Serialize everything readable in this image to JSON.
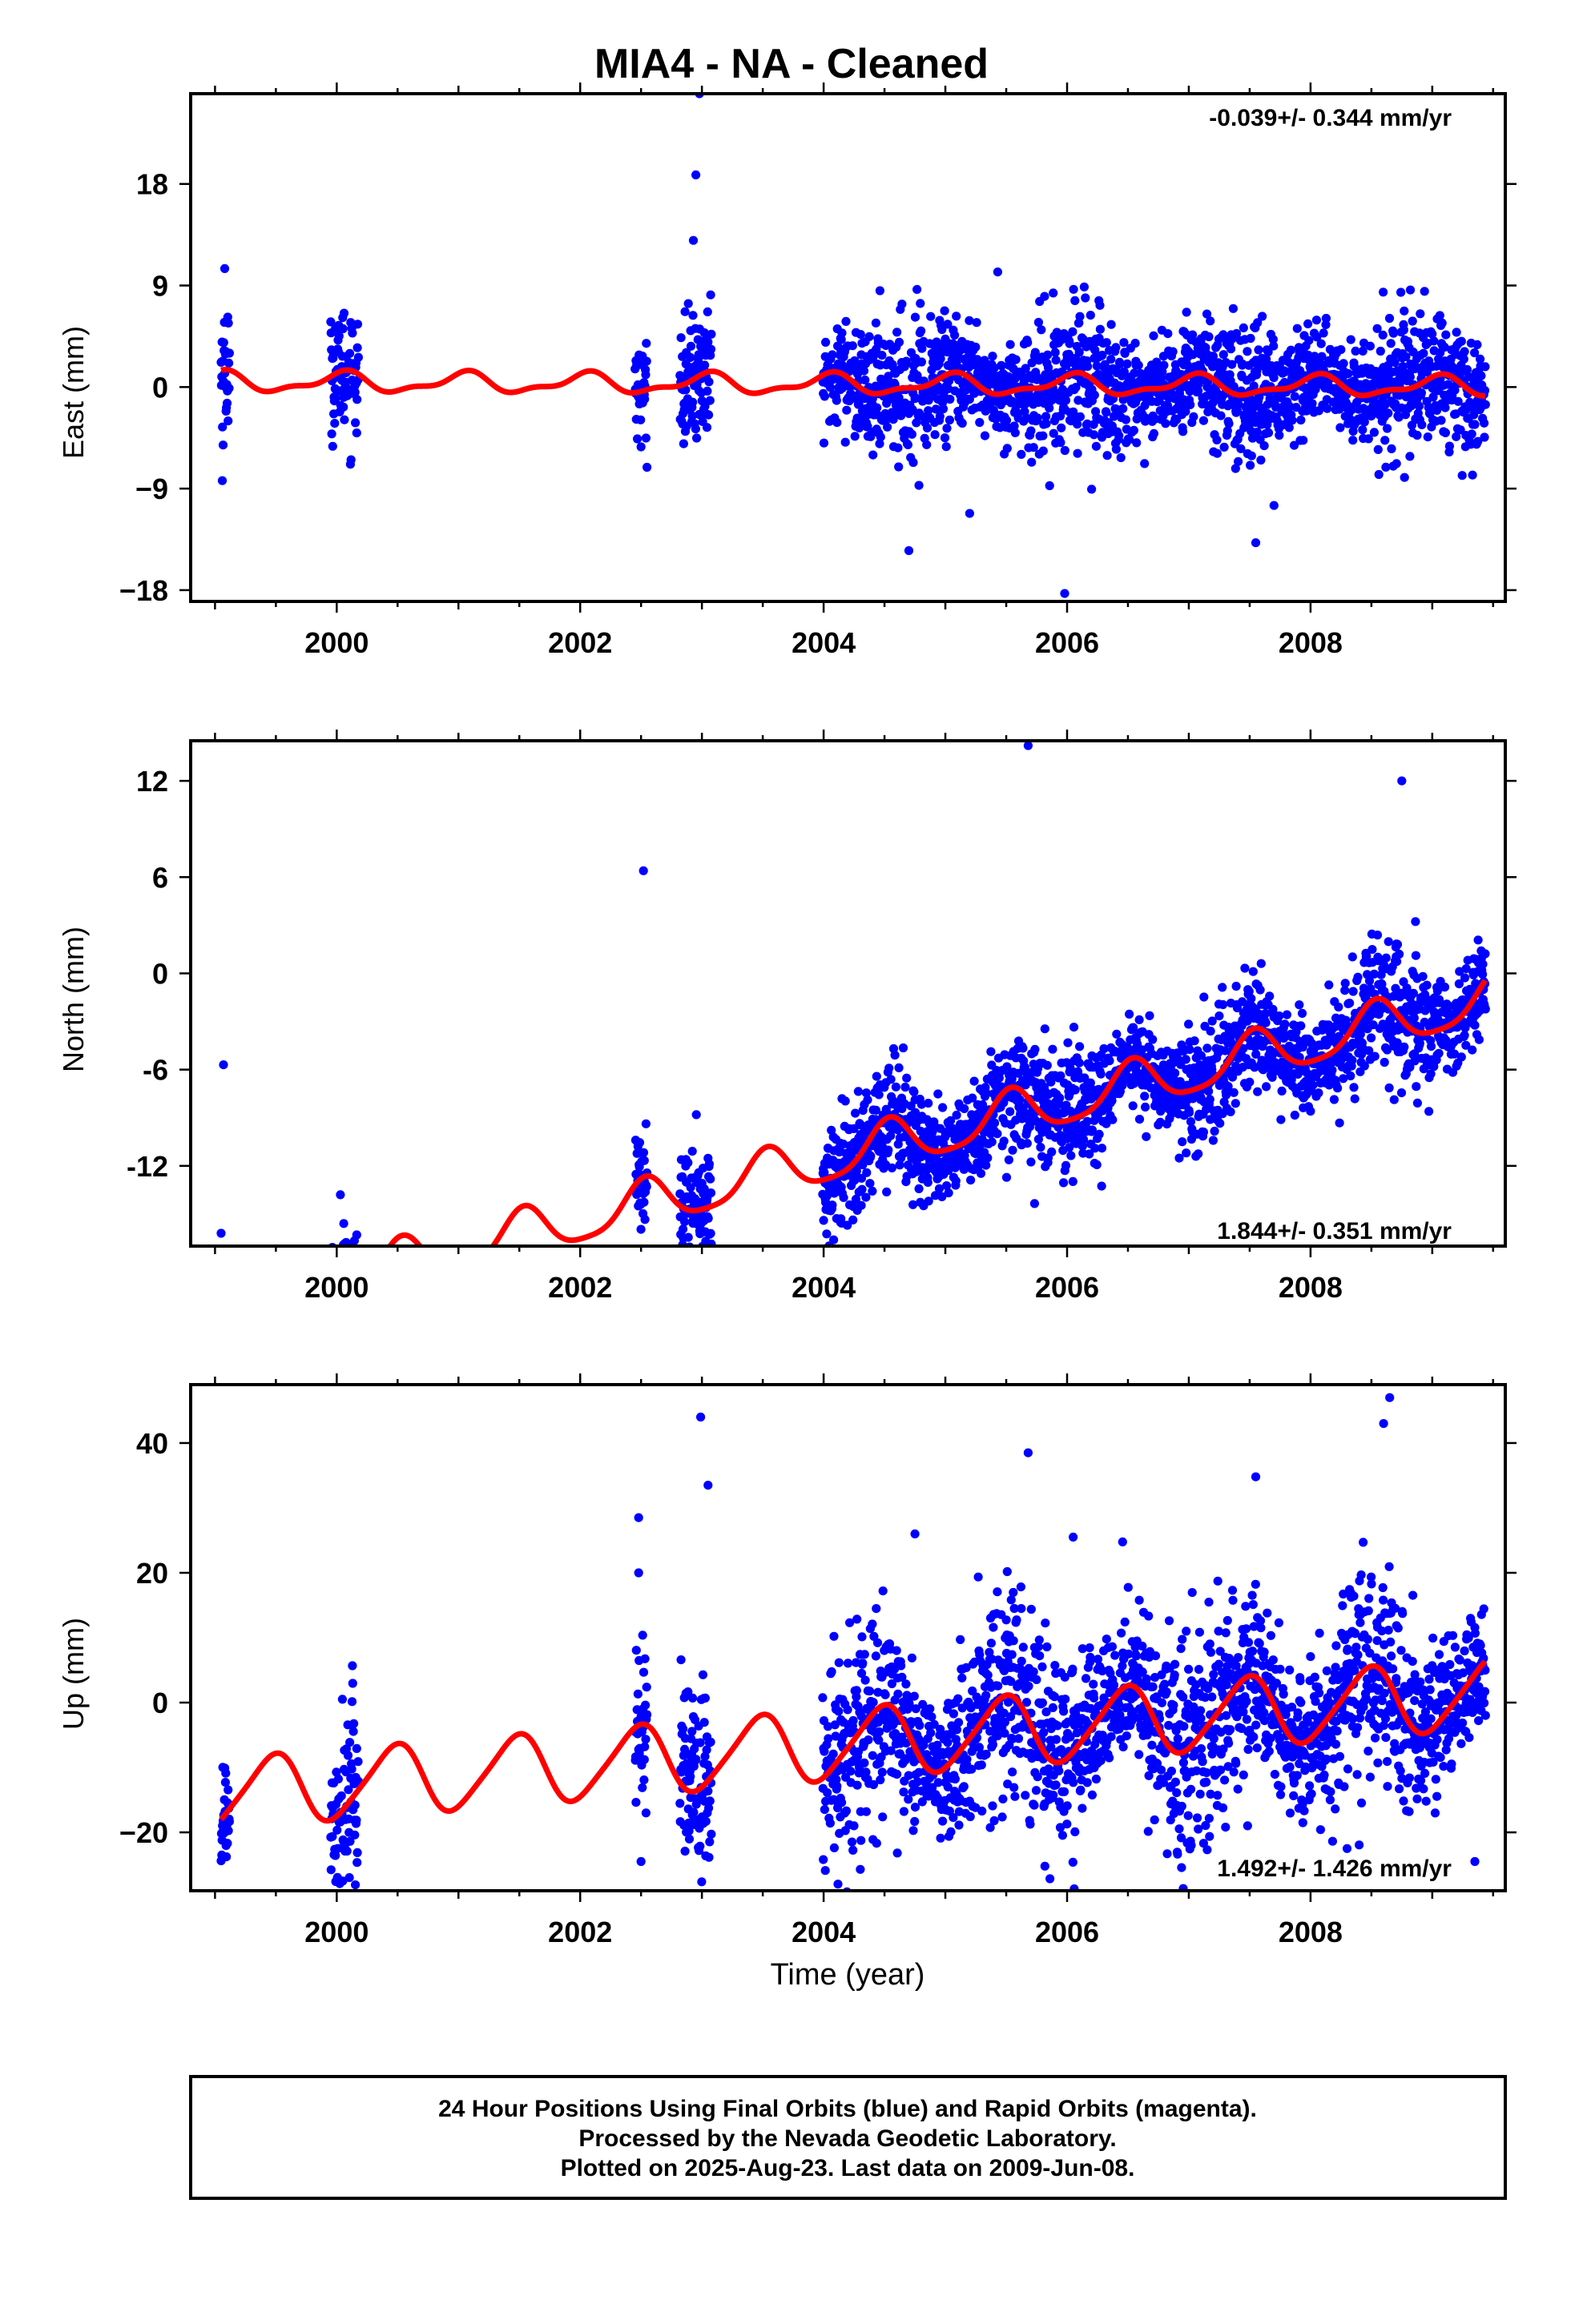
{
  "title": "MIA4  - NA - Cleaned",
  "xlabel": "Time (year)",
  "footer": {
    "lines": [
      "24 Hour Positions Using Final Orbits (blue) and Rapid Orbits (magenta).",
      "Processed by the Nevada Geodetic Laboratory.",
      "Plotted on 2025-Aug-23. Last data on 2009-Jun-08."
    ]
  },
  "colors": {
    "points": "#0000ff",
    "fit": "#ff0000",
    "frame": "#000000"
  },
  "chart_data": [
    {
      "type": "scatter",
      "name": "east",
      "ylabel": "East (mm)",
      "rate_label": "-0.039+/- 0.344 mm/yr",
      "rate_position": "top-right",
      "xlim": [
        1998.8,
        2009.6
      ],
      "ylim": [
        -19,
        26
      ],
      "yticks": [
        -18,
        -9,
        0,
        9,
        18
      ],
      "ytick_labels": [
        "−18",
        "−9",
        "0",
        "9",
        "18"
      ],
      "xticks": [
        2000,
        2002,
        2004,
        2006,
        2008
      ],
      "xtick_labels": [
        "2000",
        "2002",
        "2004",
        "2006",
        "2008"
      ],
      "fit": {
        "intercept": 0.25,
        "slope": -0.039,
        "annual_amp": 0.8,
        "annual_phase": 1.3,
        "semi_amp": 0.35,
        "semi_phase": 0.2
      },
      "noise": 2.6,
      "gaps": [
        [
          1999.12,
          1999.95
        ],
        [
          2000.18,
          2002.45
        ],
        [
          2002.55,
          2002.82
        ],
        [
          2003.08,
          2003.99
        ]
      ],
      "outliers": [
        [
          1999.08,
          10.5
        ],
        [
          1999.06,
          -8.3
        ],
        [
          2002.98,
          26
        ],
        [
          2002.95,
          18.8
        ],
        [
          2002.93,
          13
        ],
        [
          2004.7,
          -14.5
        ],
        [
          2005.2,
          -11.2
        ],
        [
          2005.98,
          -18.3
        ],
        [
          2006.15,
          7.9
        ],
        [
          2005.43,
          10.2
        ],
        [
          2007.55,
          -13.8
        ],
        [
          2007.7,
          -10.5
        ],
        [
          2008.82,
          8.6
        ],
        [
          2002.5,
          -5.3
        ]
      ]
    },
    {
      "type": "scatter",
      "name": "north",
      "ylabel": "North (mm)",
      "rate_label": "1.844+/- 0.351 mm/yr",
      "rate_position": "bottom-right",
      "xlim": [
        1998.8,
        2009.6
      ],
      "ylim": [
        -17,
        14.5
      ],
      "yticks": [
        -12,
        -6,
        0,
        6,
        12
      ],
      "ytick_labels": [
        "-12",
        "-6",
        "0",
        "6",
        "12"
      ],
      "xticks": [
        2000,
        2002,
        2004,
        2006,
        2008
      ],
      "xtick_labels": [
        "2000",
        "2002",
        "2004",
        "2006",
        "2008"
      ],
      "fit": {
        "intercept": -11.7,
        "slope": 1.844,
        "annual_amp": 1.45,
        "annual_phase": 4.5,
        "semi_amp": 0.3,
        "semi_phase": 1.0
      },
      "noise": 1.7,
      "gaps": [
        [
          1999.12,
          1999.95
        ],
        [
          2000.18,
          2002.45
        ],
        [
          2002.55,
          2002.82
        ],
        [
          2003.08,
          2003.99
        ]
      ],
      "outliers": [
        [
          1999.07,
          -5.7
        ],
        [
          2002.52,
          6.4
        ],
        [
          2002.98,
          -14.5
        ],
        [
          2005.68,
          14.2
        ],
        [
          2004.72,
          -12.2
        ],
        [
          2008.75,
          12
        ],
        [
          2000.03,
          -13.8
        ],
        [
          1999.05,
          -16.2
        ]
      ]
    },
    {
      "type": "scatter",
      "name": "up",
      "ylabel": "Up (mm)",
      "rate_label": "1.492+/- 1.426 mm/yr",
      "rate_position": "bottom-right",
      "xlim": [
        1998.8,
        2009.6
      ],
      "ylim": [
        -29,
        49
      ],
      "yticks": [
        -20,
        0,
        20,
        40
      ],
      "ytick_labels": [
        "−20",
        "0",
        "20",
        "40"
      ],
      "xticks": [
        2000,
        2002,
        2004,
        2006,
        2008
      ],
      "xtick_labels": [
        "2000",
        "2002",
        "2004",
        "2006",
        "2008"
      ],
      "fit": {
        "intercept": -6.7,
        "slope": 1.492,
        "annual_amp": 5.3,
        "annual_phase": 4.9,
        "semi_amp": 0.8,
        "semi_phase": 0.5
      },
      "noise": 7.0,
      "gaps": [
        [
          1999.12,
          1999.95
        ],
        [
          2000.18,
          2002.45
        ],
        [
          2002.55,
          2002.82
        ],
        [
          2003.08,
          2003.99
        ]
      ],
      "outliers": [
        [
          2002.99,
          44
        ],
        [
          2003.05,
          33.5
        ],
        [
          2002.48,
          28.5
        ],
        [
          2002.48,
          20
        ],
        [
          2000.05,
          -27.5
        ],
        [
          2005.68,
          38.5
        ],
        [
          2008.65,
          47
        ],
        [
          2008.6,
          43
        ],
        [
          2007.55,
          34.8
        ],
        [
          2002.5,
          -24.5
        ],
        [
          2004.75,
          26
        ],
        [
          2006.05,
          25.5
        ],
        [
          2008.3,
          -22.5
        ],
        [
          2009.35,
          -24.5
        ]
      ]
    }
  ]
}
